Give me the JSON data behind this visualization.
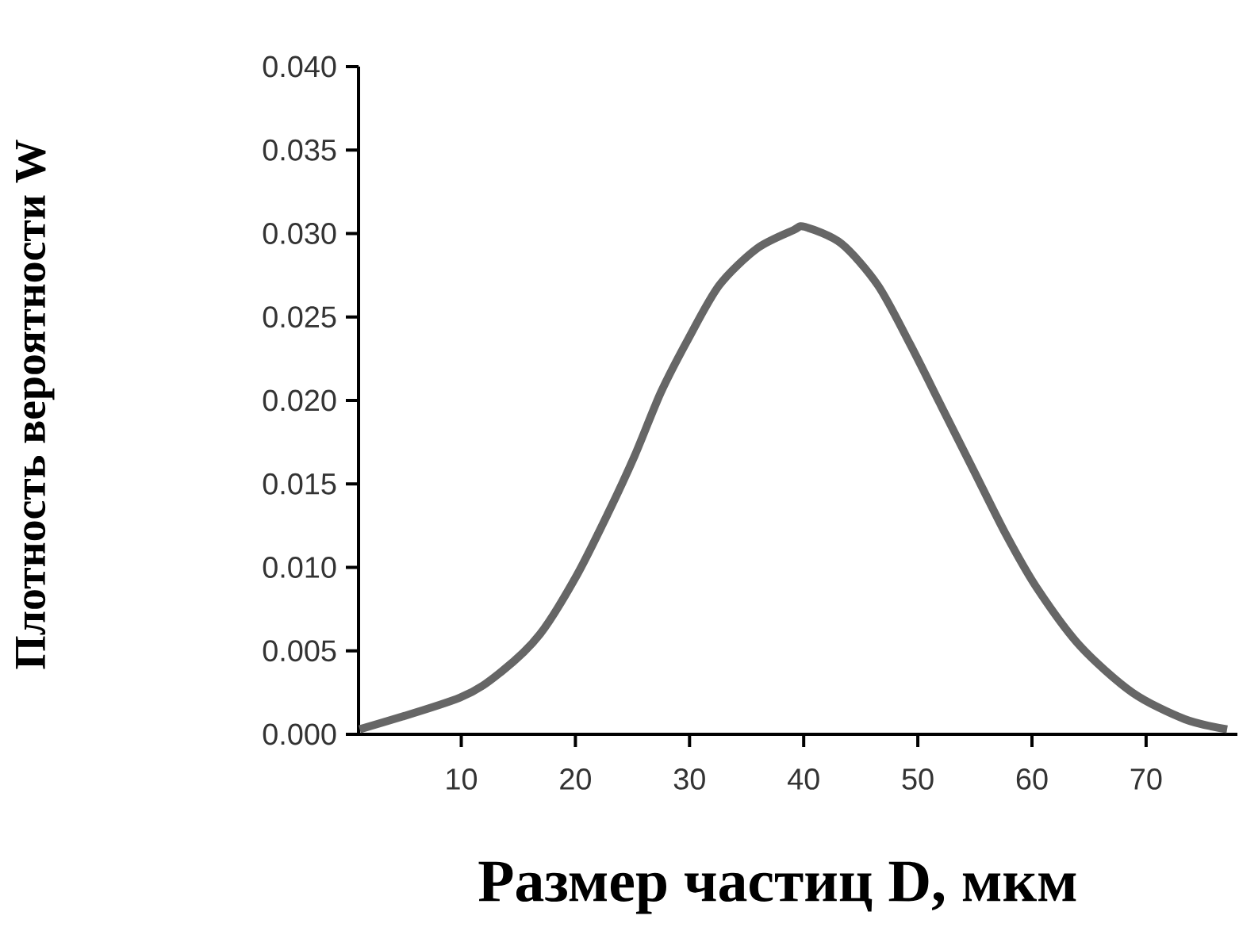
{
  "chart_data": {
    "type": "line",
    "xlabel": "Размер частиц D, мкм",
    "ylabel": "Плотность вероятности W",
    "x": [
      1.1,
      9.9,
      13.6,
      16.9,
      20.1,
      22.9,
      25.2,
      27.5,
      29.9,
      32.6,
      35.9,
      39.1,
      40.1,
      43.3,
      46.5,
      49.3,
      52.1,
      54.9,
      57.7,
      60.4,
      64.2,
      68.8,
      73.4,
      77.1
    ],
    "series": [
      {
        "color": "#666666",
        "values": [
          0.0003,
          0.0022,
          0.0038,
          0.006,
          0.0095,
          0.0133,
          0.0167,
          0.0205,
          0.0237,
          0.0269,
          0.0291,
          0.0302,
          0.0304,
          0.0294,
          0.0269,
          0.0234,
          0.0196,
          0.0158,
          0.012,
          0.0088,
          0.0053,
          0.0025,
          0.0009,
          0.0003
        ]
      }
    ],
    "xlim": [
      1,
      78
    ],
    "ylim": [
      0,
      0.04
    ],
    "xticks": [
      10,
      20,
      30,
      40,
      50,
      60,
      70
    ],
    "yticks": [
      {
        "value": 0,
        "label": "0.000"
      },
      {
        "value": 0.005,
        "label": "0.005"
      },
      {
        "value": 0.01,
        "label": "0.010"
      },
      {
        "value": 0.015,
        "label": "0.015"
      },
      {
        "value": 0.02,
        "label": "0.020"
      },
      {
        "value": 0.025,
        "label": "0.025"
      },
      {
        "value": 0.03,
        "label": "0.030"
      },
      {
        "value": 0.035,
        "label": "0.035"
      },
      {
        "value": 0.04,
        "label": "0.040"
      }
    ],
    "marker": "none",
    "line_style": "solid"
  }
}
